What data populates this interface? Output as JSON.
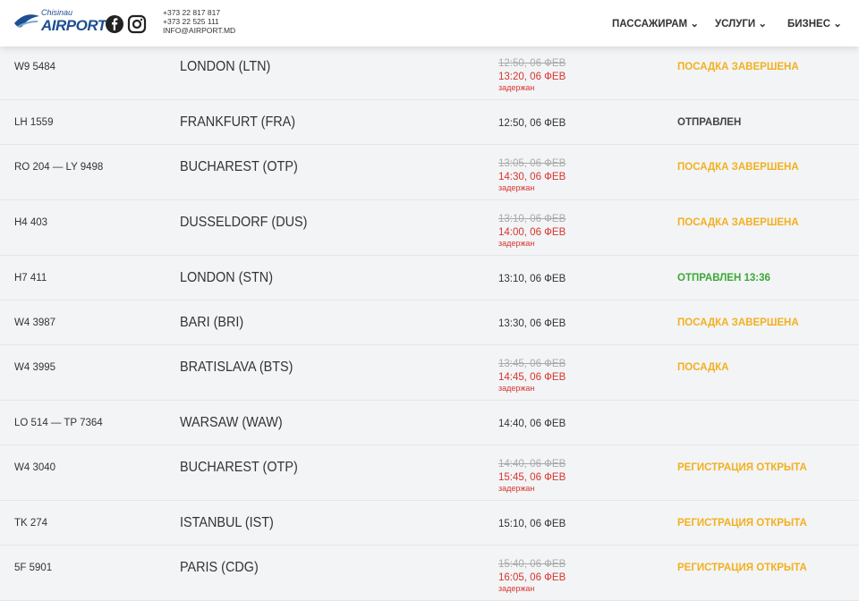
{
  "header": {
    "logo_small": "Chisinau",
    "logo": "AIRPORT",
    "phones": [
      "+373 22 817 817",
      "+373 22 525 111"
    ],
    "email": "INFO@AIRPORT.MD",
    "nav": [
      "ПАССАЖИРАМ",
      "УСЛУГИ",
      "БИЗНЕС"
    ]
  },
  "flights": [
    {
      "flight": "W9 5484",
      "destination": "LONDON (LTN)",
      "scheduled": "12:50, 06 ФЕВ",
      "new_time": "13:20, 06 ФЕВ",
      "delay_note": "задержан",
      "status": "ПОСАДКА ЗАВЕРШЕНА",
      "status_color": "#f2b01e"
    },
    {
      "flight": "LH 1559",
      "destination": "FRANKFURT (FRA)",
      "scheduled": "12:50, 06 ФЕВ",
      "status": "ОТПРАВЛЕН",
      "status_color": "#444444"
    },
    {
      "flight": "RO 204 — LY 9498",
      "destination": "BUCHAREST (OTP)",
      "scheduled": "13:05, 06 ФЕВ",
      "new_time": "14:30, 06 ФЕВ",
      "delay_note": "задержан",
      "status": "ПОСАДКА ЗАВЕРШЕНА",
      "status_color": "#f2b01e"
    },
    {
      "flight": "H4 403",
      "destination": "DUSSELDORF (DUS)",
      "scheduled": "13:10, 06 ФЕВ",
      "new_time": "14:00, 06 ФЕВ",
      "delay_note": "задержан",
      "status": "ПОСАДКА ЗАВЕРШЕНА",
      "status_color": "#f2b01e"
    },
    {
      "flight": "H7 411",
      "destination": "LONDON (STN)",
      "scheduled": "13:10, 06 ФЕВ",
      "status": "ОТПРАВЛЕН 13:36",
      "status_color": "#3aa835"
    },
    {
      "flight": "W4 3987",
      "destination": "BARI (BRI)",
      "scheduled": "13:30, 06 ФЕВ",
      "status": "ПОСАДКА ЗАВЕРШЕНА",
      "status_color": "#f2b01e"
    },
    {
      "flight": "W4 3995",
      "destination": "BRATISLAVA (BTS)",
      "scheduled": "13:45, 06 ФЕВ",
      "new_time": "14:45, 06 ФЕВ",
      "delay_note": "задержан",
      "status": "ПОСАДКА",
      "status_color": "#f2b01e"
    },
    {
      "flight": "LO 514 — TP 7364",
      "destination": "WARSAW (WAW)",
      "scheduled": "14:40, 06 ФЕВ"
    },
    {
      "flight": "W4 3040",
      "destination": "BUCHAREST (OTP)",
      "scheduled": "14:40, 06 ФЕВ",
      "new_time": "15:45, 06 ФЕВ",
      "delay_note": "задержан",
      "status": "РЕГИСТРАЦИЯ ОТКРЫТА",
      "status_color": "#f2b01e"
    },
    {
      "flight": "TK 274",
      "destination": "ISTANBUL (IST)",
      "scheduled": "15:10, 06 ФЕВ",
      "status": "РЕГИСТРАЦИЯ ОТКРЫТА",
      "status_color": "#f2b01e"
    },
    {
      "flight": "5F 5901",
      "destination": "PARIS (CDG)",
      "scheduled": "15:40, 06 ФЕВ",
      "new_time": "16:05, 06 ФЕВ",
      "delay_note": "задержан",
      "status": "РЕГИСТРАЦИЯ ОТКРЫТА",
      "status_color": "#f2b01e"
    }
  ]
}
